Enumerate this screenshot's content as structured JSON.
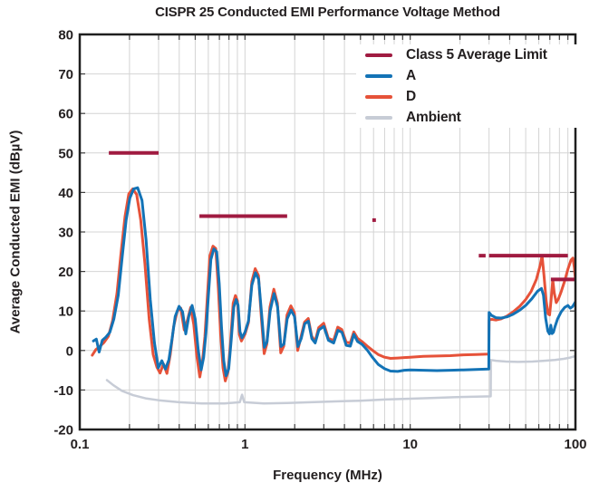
{
  "chart_data": {
    "type": "line",
    "title": "CISPR 25 Conducted EMI Performance Voltage Method",
    "xlabel": "Frequency (MHz)",
    "ylabel": "Average Conducted EMI (dBµV)",
    "x_scale": "log",
    "xlim": [
      0.1,
      100
    ],
    "ylim": [
      -20,
      80
    ],
    "x_ticks": [
      "0.1",
      "1",
      "10",
      "100"
    ],
    "y_ticks": [
      80,
      70,
      60,
      50,
      40,
      30,
      20,
      10,
      0,
      -10,
      -20
    ],
    "grid": true,
    "legend_position": "top-right",
    "colors": {
      "limit": "#a01b41",
      "series_a": "#1373b6",
      "series_d": "#e65239",
      "ambient": "#c7ccd6",
      "frame": "#1f1f1f",
      "grid": "#d4d4d4",
      "tick": "#3f3f3f",
      "text": "#231f20"
    },
    "limit": {
      "name": "Class 5 Average Limit",
      "color": "#a01b41",
      "segments_mhz_dbuv": [
        [
          0.15,
          0.3,
          50
        ],
        [
          0.53,
          1.8,
          34
        ],
        [
          5.9,
          6.2,
          33
        ],
        [
          26,
          28.6,
          24
        ],
        [
          30,
          90,
          24
        ],
        [
          71,
          100,
          18
        ]
      ]
    },
    "series": [
      {
        "name": "A",
        "color": "#1373b6",
        "points": [
          [
            0.121,
            2.4
          ],
          [
            0.126,
            2.9
          ],
          [
            0.131,
            -0.4
          ],
          [
            0.137,
            2.6
          ],
          [
            0.144,
            3.4
          ],
          [
            0.152,
            4.6
          ],
          [
            0.161,
            8
          ],
          [
            0.171,
            14
          ],
          [
            0.181,
            24
          ],
          [
            0.191,
            33
          ],
          [
            0.201,
            38.6
          ],
          [
            0.212,
            40.9
          ],
          [
            0.224,
            41.2
          ],
          [
            0.238,
            38
          ],
          [
            0.252,
            28
          ],
          [
            0.267,
            13
          ],
          [
            0.283,
            2
          ],
          [
            0.299,
            -4.4
          ],
          [
            0.314,
            -2.6
          ],
          [
            0.33,
            -4.7
          ],
          [
            0.346,
            -2.4
          ],
          [
            0.362,
            3
          ],
          [
            0.378,
            8.6
          ],
          [
            0.399,
            11.2
          ],
          [
            0.419,
            9.8
          ],
          [
            0.438,
            4.2
          ],
          [
            0.458,
            8.8
          ],
          [
            0.479,
            11.4
          ],
          [
            0.5,
            8
          ],
          [
            0.521,
            0.2
          ],
          [
            0.543,
            -4.9
          ],
          [
            0.562,
            -1.8
          ],
          [
            0.581,
            4.5
          ],
          [
            0.601,
            14
          ],
          [
            0.622,
            23
          ],
          [
            0.648,
            25.7
          ],
          [
            0.674,
            25
          ],
          [
            0.698,
            17
          ],
          [
            0.721,
            6
          ],
          [
            0.744,
            -2.6
          ],
          [
            0.768,
            -6.4
          ],
          [
            0.797,
            -4.6
          ],
          [
            0.826,
            2.8
          ],
          [
            0.856,
            11
          ],
          [
            0.884,
            12.9
          ],
          [
            0.908,
            11.5
          ],
          [
            0.933,
            4.8
          ],
          [
            0.959,
            3.2
          ],
          [
            1.0,
            4.6
          ],
          [
            1.05,
            7.5
          ],
          [
            1.1,
            16.5
          ],
          [
            1.157,
            19.7
          ],
          [
            1.21,
            18
          ],
          [
            1.262,
            9
          ],
          [
            1.31,
            0.8
          ],
          [
            1.36,
            2.2
          ],
          [
            1.42,
            10
          ],
          [
            1.5,
            14.4
          ],
          [
            1.575,
            11
          ],
          [
            1.65,
            1
          ],
          [
            1.72,
            1.6
          ],
          [
            1.8,
            8
          ],
          [
            1.9,
            10.2
          ],
          [
            1.995,
            8.6
          ],
          [
            2.09,
            1
          ],
          [
            2.19,
            3
          ],
          [
            2.3,
            6.8
          ],
          [
            2.42,
            7.4
          ],
          [
            2.54,
            3
          ],
          [
            2.66,
            1.9
          ],
          [
            2.8,
            5.2
          ],
          [
            3.0,
            6.1
          ],
          [
            3.2,
            2.6
          ],
          [
            3.44,
            1.9
          ],
          [
            3.65,
            5.1
          ],
          [
            3.86,
            4.6
          ],
          [
            4.1,
            1.3
          ],
          [
            4.34,
            1.1
          ],
          [
            4.56,
            4.1
          ],
          [
            4.8,
            2.3
          ],
          [
            5.1,
            1.6
          ],
          [
            5.5,
            0.1
          ],
          [
            5.9,
            -1.7
          ],
          [
            6.4,
            -3.5
          ],
          [
            7.0,
            -4.6
          ],
          [
            7.6,
            -5.2
          ],
          [
            8.4,
            -5.3
          ],
          [
            9.2,
            -5
          ],
          [
            10,
            -4.9
          ],
          [
            12,
            -5
          ],
          [
            14.5,
            -5.1
          ],
          [
            17.5,
            -5
          ],
          [
            21,
            -4.9
          ],
          [
            25,
            -4.8
          ],
          [
            29.9,
            -4.7
          ],
          [
            30,
            9.6
          ],
          [
            31,
            8.9
          ],
          [
            33,
            8.3
          ],
          [
            35.5,
            8.2
          ],
          [
            38.5,
            8.5
          ],
          [
            42,
            9.2
          ],
          [
            46,
            10.2
          ],
          [
            50,
            11.4
          ],
          [
            54.5,
            13.1
          ],
          [
            59,
            15
          ],
          [
            62.3,
            15.7
          ],
          [
            64,
            14
          ],
          [
            66,
            8.2
          ],
          [
            68,
            4.9
          ],
          [
            69.6,
            4.2
          ],
          [
            70.9,
            6.4
          ],
          [
            72.2,
            4.3
          ],
          [
            73.6,
            4.6
          ],
          [
            75.2,
            6
          ],
          [
            78,
            8
          ],
          [
            82,
            9.8
          ],
          [
            86,
            10.9
          ],
          [
            90,
            11.4
          ],
          [
            93,
            10.7
          ],
          [
            96,
            11.1
          ],
          [
            100,
            12.3
          ]
        ]
      },
      {
        "name": "D",
        "color": "#e65239",
        "points": [
          [
            0.119,
            -1.2
          ],
          [
            0.125,
            0.2
          ],
          [
            0.132,
            1
          ],
          [
            0.14,
            2
          ],
          [
            0.149,
            3.6
          ],
          [
            0.158,
            7.5
          ],
          [
            0.168,
            14.5
          ],
          [
            0.178,
            25
          ],
          [
            0.188,
            34
          ],
          [
            0.198,
            39.6
          ],
          [
            0.209,
            40.9
          ],
          [
            0.221,
            39.5
          ],
          [
            0.234,
            33
          ],
          [
            0.248,
            22
          ],
          [
            0.263,
            8
          ],
          [
            0.278,
            -1
          ],
          [
            0.293,
            -4.2
          ],
          [
            0.306,
            -5.7
          ],
          [
            0.321,
            -3.4
          ],
          [
            0.337,
            -5.8
          ],
          [
            0.353,
            -1
          ],
          [
            0.37,
            6
          ],
          [
            0.389,
            10
          ],
          [
            0.409,
            10.7
          ],
          [
            0.429,
            5.2
          ],
          [
            0.449,
            7.7
          ],
          [
            0.469,
            10.9
          ],
          [
            0.49,
            6.6
          ],
          [
            0.511,
            -1.4
          ],
          [
            0.533,
            -6.7
          ],
          [
            0.553,
            -2.8
          ],
          [
            0.572,
            3.5
          ],
          [
            0.592,
            13.5
          ],
          [
            0.613,
            24
          ],
          [
            0.64,
            26.4
          ],
          [
            0.666,
            25.8
          ],
          [
            0.69,
            15.5
          ],
          [
            0.713,
            4
          ],
          [
            0.736,
            -4.4
          ],
          [
            0.76,
            -7.7
          ],
          [
            0.789,
            -5.4
          ],
          [
            0.818,
            2
          ],
          [
            0.848,
            12
          ],
          [
            0.876,
            13.9
          ],
          [
            0.9,
            12.6
          ],
          [
            0.925,
            4
          ],
          [
            0.951,
            2.4
          ],
          [
            1.0,
            4.1
          ],
          [
            1.05,
            7.1
          ],
          [
            1.1,
            17.5
          ],
          [
            1.153,
            20.7
          ],
          [
            1.206,
            19
          ],
          [
            1.258,
            8
          ],
          [
            1.306,
            -0.8
          ],
          [
            1.356,
            1.6
          ],
          [
            1.416,
            11
          ],
          [
            1.496,
            15.5
          ],
          [
            1.571,
            12
          ],
          [
            1.646,
            -0.6
          ],
          [
            1.716,
            1.1
          ],
          [
            1.796,
            9
          ],
          [
            1.896,
            11.3
          ],
          [
            1.99,
            9.6
          ],
          [
            2.085,
            0
          ],
          [
            2.185,
            3.5
          ],
          [
            2.295,
            7.2
          ],
          [
            2.415,
            8.1
          ],
          [
            2.535,
            3.6
          ],
          [
            2.655,
            2.3
          ],
          [
            2.795,
            5.8
          ],
          [
            2.995,
            6.9
          ],
          [
            3.195,
            3.1
          ],
          [
            3.435,
            2.5
          ],
          [
            3.645,
            5.9
          ],
          [
            3.855,
            5.3
          ],
          [
            4.095,
            2.1
          ],
          [
            4.335,
            1.9
          ],
          [
            4.555,
            4.7
          ],
          [
            4.795,
            3.1
          ],
          [
            5.095,
            2.3
          ],
          [
            5.495,
            1.1
          ],
          [
            5.895,
            0.1
          ],
          [
            6.395,
            -1
          ],
          [
            6.995,
            -1.7
          ],
          [
            7.595,
            -2
          ],
          [
            8.395,
            -1.9
          ],
          [
            9.195,
            -1.8
          ],
          [
            10,
            -1.7
          ],
          [
            12,
            -1.5
          ],
          [
            14.5,
            -1.4
          ],
          [
            17.5,
            -1.3
          ],
          [
            21,
            -1.1
          ],
          [
            25,
            -1
          ],
          [
            29.9,
            -0.9
          ],
          [
            30,
            7.7
          ],
          [
            31,
            7.9
          ],
          [
            33,
            7.7
          ],
          [
            35.5,
            8
          ],
          [
            38.5,
            8.7
          ],
          [
            42,
            9.8
          ],
          [
            46,
            11.2
          ],
          [
            50,
            12.9
          ],
          [
            54,
            15
          ],
          [
            58,
            18
          ],
          [
            61,
            21.4
          ],
          [
            62.8,
            24
          ],
          [
            64.5,
            19
          ],
          [
            66.5,
            12.6
          ],
          [
            68.3,
            9.3
          ],
          [
            69.8,
            9
          ],
          [
            71.3,
            13
          ],
          [
            72.9,
            17.9
          ],
          [
            74.4,
            14.6
          ],
          [
            76.5,
            12.1
          ],
          [
            79,
            13.1
          ],
          [
            82,
            14.9
          ],
          [
            86,
            17.6
          ],
          [
            90,
            20.6
          ],
          [
            94,
            22.9
          ],
          [
            96.5,
            23.4
          ],
          [
            98.5,
            21
          ],
          [
            100,
            17.9
          ]
        ]
      },
      {
        "name": "Ambient",
        "color": "#c7ccd6",
        "points": [
          [
            0.146,
            -7.5
          ],
          [
            0.16,
            -8.8
          ],
          [
            0.18,
            -10.2
          ],
          [
            0.21,
            -11.3
          ],
          [
            0.25,
            -12.1
          ],
          [
            0.3,
            -12.6
          ],
          [
            0.4,
            -13.1
          ],
          [
            0.55,
            -13.4
          ],
          [
            0.75,
            -13.4
          ],
          [
            0.93,
            -13.1
          ],
          [
            0.96,
            -11.2
          ],
          [
            0.99,
            -13.1
          ],
          [
            1.3,
            -13.4
          ],
          [
            1.8,
            -13.3
          ],
          [
            2.5,
            -13.1
          ],
          [
            3.5,
            -12.9
          ],
          [
            5,
            -12.7
          ],
          [
            7,
            -12.4
          ],
          [
            10,
            -12.2
          ],
          [
            14,
            -12
          ],
          [
            19,
            -11.8
          ],
          [
            25,
            -11.7
          ],
          [
            30.7,
            -11.6
          ],
          [
            30.8,
            -2.4
          ],
          [
            33,
            -2.6
          ],
          [
            38,
            -2.8
          ],
          [
            45,
            -2.9
          ],
          [
            55,
            -2.8
          ],
          [
            65,
            -2.6
          ],
          [
            75,
            -2.4
          ],
          [
            85,
            -2.1
          ],
          [
            93,
            -1.8
          ],
          [
            100,
            -1.4
          ]
        ]
      }
    ]
  }
}
